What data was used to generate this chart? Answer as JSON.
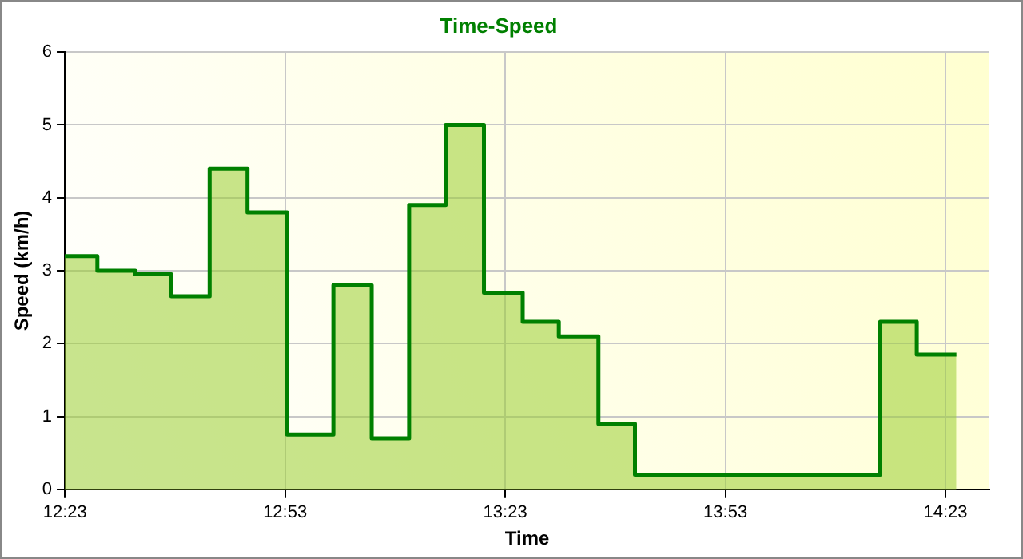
{
  "chart_data": {
    "type": "area",
    "title": "Time-Speed",
    "xlabel": "Time",
    "ylabel": "Speed (km/h)",
    "x": [
      12.383,
      12.457,
      12.457,
      12.543,
      12.543,
      12.625,
      12.625,
      12.712,
      12.712,
      12.798,
      12.798,
      12.888,
      12.888,
      12.993,
      12.993,
      13.08,
      13.08,
      13.165,
      13.165,
      13.248,
      13.248,
      13.335,
      13.335,
      13.423,
      13.423,
      13.505,
      13.505,
      13.595,
      13.595,
      13.678,
      13.678,
      14.235,
      14.235,
      14.318,
      14.318,
      14.408
    ],
    "series": [
      {
        "color": "#008000",
        "values": [
          3.2,
          3.2,
          3.0,
          3.0,
          2.95,
          2.95,
          2.65,
          2.65,
          4.4,
          4.4,
          3.8,
          3.8,
          0.75,
          0.75,
          2.8,
          2.8,
          0.7,
          0.7,
          3.9,
          3.9,
          5.0,
          5.0,
          2.7,
          2.7,
          2.3,
          2.3,
          2.1,
          2.1,
          0.9,
          0.9,
          0.2,
          0.2,
          2.3,
          2.3,
          1.85,
          1.85
        ]
      }
    ],
    "xlim": [
      12.383,
      14.483
    ],
    "xticks": [
      {
        "value": 12.3833,
        "label": "12:23"
      },
      {
        "value": 12.8833,
        "label": "12:53"
      },
      {
        "value": 13.3833,
        "label": "13:23"
      },
      {
        "value": 13.8833,
        "label": "13:53"
      },
      {
        "value": 14.3833,
        "label": "14:23"
      }
    ],
    "ylim": [
      0,
      6
    ],
    "yticks": [
      0,
      1,
      2,
      3,
      4,
      5,
      6
    ],
    "grid": true,
    "legend": false
  }
}
